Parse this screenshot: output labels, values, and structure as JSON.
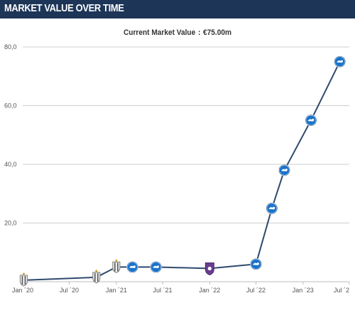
{
  "header": {
    "title": "MARKET VALUE OVER TIME"
  },
  "current": {
    "label": "Current Market Value",
    "value": "€75.00m"
  },
  "colors": {
    "header_bg": "#1d3557",
    "line": "#2f4a6d",
    "club_primary": "#1a73c9",
    "club_alt": "#6a3d8f",
    "club_prior": "#8a8a8a"
  },
  "chart_data": {
    "type": "line",
    "title": "Current Market Value : €75.00m",
    "xlabel": "",
    "ylabel": "",
    "ylim": [
      0,
      80
    ],
    "grid": true,
    "y_ticks": [
      20,
      40,
      60,
      80
    ],
    "y_tick_labels": [
      "20,0",
      "40,0",
      "60,0",
      "80,0"
    ],
    "x_ticks": [
      "2020-01-01",
      "2020-07-01",
      "2021-01-01",
      "2021-07-01",
      "2022-01-01",
      "2022-07-01",
      "2023-01-01",
      "2023-07-01"
    ],
    "x_tick_labels": [
      "Jan ´20",
      "Jul ´20",
      "Jan ´21",
      "Jul ´21",
      "Jan ´22",
      "Jul ´22",
      "Jan ´23",
      "Jul ´2"
    ],
    "x_range": [
      "2020-01-01",
      "2023-07-01"
    ],
    "series": [
      {
        "points": [
          {
            "x": "2020-01-05",
            "y": 0.5,
            "club": "prior"
          },
          {
            "x": "2020-10-15",
            "y": 1.5,
            "club": "prior"
          },
          {
            "x": "2021-01-01",
            "y": 5.0,
            "club": "prior"
          },
          {
            "x": "2021-03-05",
            "y": 5.0,
            "club": "primary"
          },
          {
            "x": "2021-06-05",
            "y": 5.0,
            "club": "primary"
          },
          {
            "x": "2022-01-01",
            "y": 4.5,
            "club": "alt"
          },
          {
            "x": "2022-07-01",
            "y": 6.0,
            "club": "primary"
          },
          {
            "x": "2022-09-01",
            "y": 25.0,
            "club": "primary"
          },
          {
            "x": "2022-10-20",
            "y": 38.0,
            "club": "primary"
          },
          {
            "x": "2023-02-01",
            "y": 55.0,
            "club": "primary"
          },
          {
            "x": "2023-05-25",
            "y": 75.0,
            "club": "primary"
          }
        ]
      }
    ]
  }
}
